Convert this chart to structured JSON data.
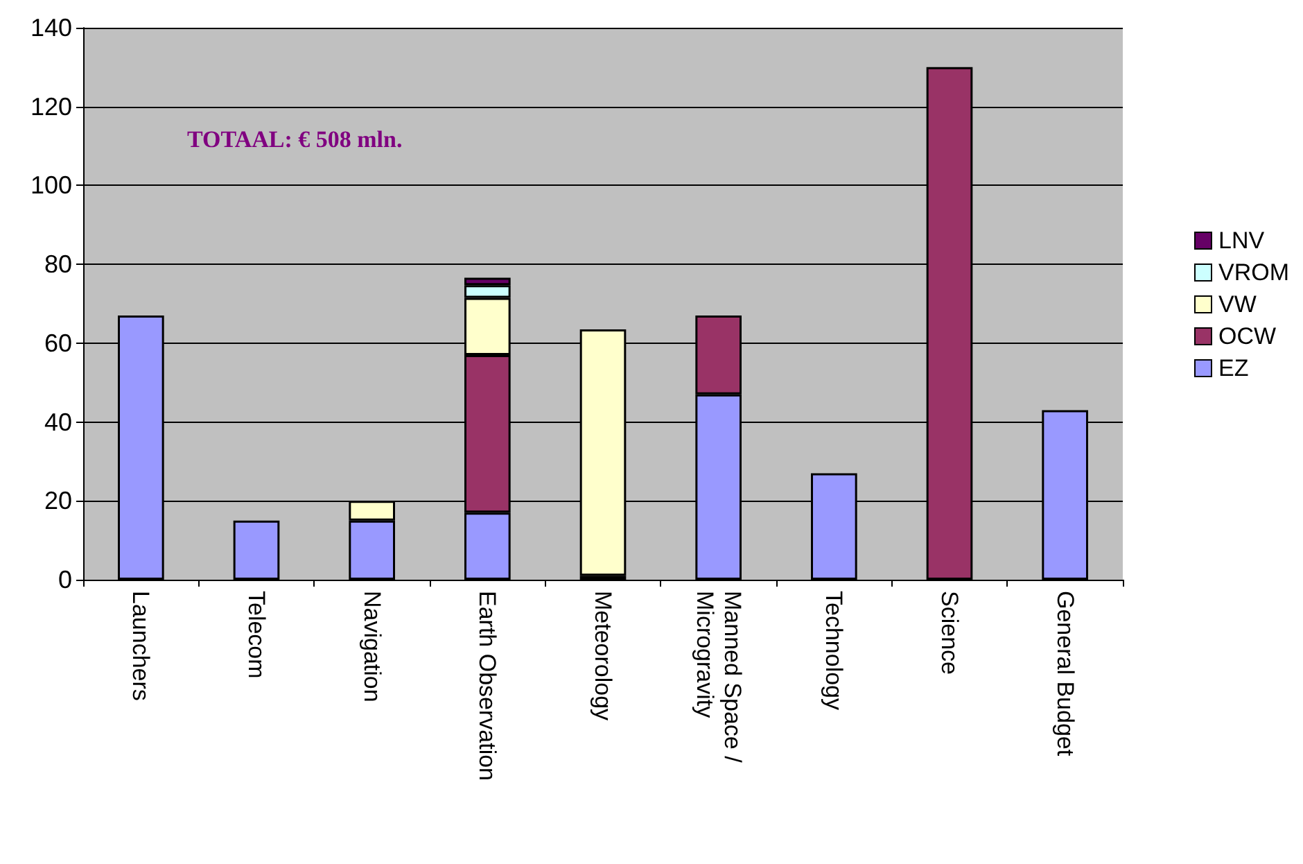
{
  "chart_data": {
    "type": "bar",
    "stacked": true,
    "categories": [
      "Launchers",
      "Telecom",
      "Navigation",
      "Earth Observation",
      "Meteorology",
      "Manned Space / Microgravity",
      "Technology",
      "Science",
      "General Budget"
    ],
    "series": [
      {
        "name": "EZ",
        "color": "#9999ff",
        "values": [
          67,
          15,
          15,
          17,
          null,
          47,
          27,
          null,
          43
        ]
      },
      {
        "name": "OCW",
        "color": "#993366",
        "values": [
          null,
          null,
          null,
          40,
          1,
          20,
          null,
          130,
          null
        ]
      },
      {
        "name": "VW",
        "color": "#ffffcc",
        "values": [
          null,
          null,
          5,
          14.5,
          62.5,
          null,
          null,
          null,
          null
        ]
      },
      {
        "name": "VROM",
        "color": "#ccffff",
        "values": [
          null,
          null,
          null,
          3.2,
          null,
          null,
          null,
          null,
          null
        ]
      },
      {
        "name": "LNV",
        "color": "#660066",
        "values": [
          null,
          null,
          null,
          1.9,
          null,
          null,
          null,
          null,
          null
        ]
      }
    ],
    "ylim": [
      0,
      140
    ],
    "yticks": [
      0,
      20,
      40,
      60,
      80,
      100,
      120,
      140
    ],
    "grid": "y",
    "legend": "right",
    "annotations": [
      "TOTAAL: € 508 mln."
    ]
  }
}
